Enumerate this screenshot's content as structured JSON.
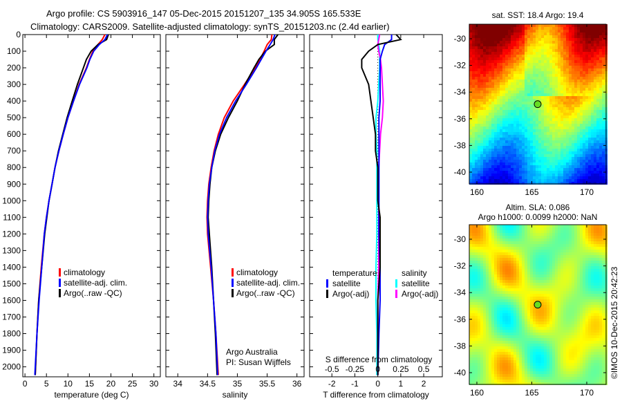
{
  "title": {
    "line1": "Argo profile: CS 5903916_147 05-Dec-2015 20151207_135 34.905S 165.533E",
    "line2": "Climatology: CARS2009. Satellite-adjusted climatology: synTS_20151203.nc (2.4d earlier)"
  },
  "colors": {
    "climatology": "#ff0000",
    "satellite": "#0000ff",
    "argo": "#000000",
    "sal_satellite": "#00ffff",
    "sal_argo": "#ff00ff"
  },
  "chart_data": [
    {
      "type": "line",
      "name": "temperature-profile",
      "xlabel": "temperature (deg C)",
      "xlim": [
        -0.5,
        31.5
      ],
      "xticks": [
        0,
        5,
        10,
        15,
        20,
        25,
        30
      ],
      "ylim": [
        2060,
        0
      ],
      "yticks": [
        0,
        100,
        200,
        300,
        400,
        500,
        600,
        700,
        800,
        900,
        1000,
        1100,
        1200,
        1300,
        1400,
        1500,
        1600,
        1700,
        1800,
        1900,
        2000
      ],
      "depth": [
        0,
        30,
        60,
        100,
        150,
        200,
        300,
        400,
        500,
        600,
        700,
        800,
        900,
        1000,
        1100,
        1200,
        1400,
        1600,
        1800,
        2050
      ],
      "series": [
        {
          "name": "climatology",
          "values": [
            18.6,
            18.0,
            17.0,
            15.8,
            15.0,
            14.3,
            12.6,
            11.3,
            10.0,
            8.9,
            7.9,
            7.0,
            6.3,
            5.6,
            5.0,
            4.5,
            3.8,
            3.2,
            2.8,
            2.4
          ]
        },
        {
          "name": "satellite-adj. clim.",
          "values": [
            19.2,
            18.6,
            17.3,
            16.0,
            15.1,
            14.4,
            12.7,
            11.3,
            10.0,
            8.9,
            7.9,
            7.0,
            6.3,
            5.6,
            5.0,
            4.5,
            3.9,
            3.3,
            2.8,
            2.3
          ]
        },
        {
          "name": "Argo(..raw -QC)",
          "values": [
            19.4,
            19.0,
            17.0,
            15.4,
            14.3,
            13.6,
            12.2,
            11.0,
            9.8,
            8.8,
            7.8,
            7.0,
            6.3,
            5.6,
            5.1,
            4.6,
            3.9,
            3.2,
            2.8,
            2.4
          ]
        }
      ],
      "legend": [
        "climatology",
        "satellite-adj. clim.",
        "Argo(..raw -QC)"
      ]
    },
    {
      "type": "line",
      "name": "salinity-profile",
      "xlabel": "salinity",
      "xlim": [
        33.8,
        36.12
      ],
      "xticks": [
        34,
        34.5,
        35,
        35.5,
        36
      ],
      "ylim": [
        2060,
        0
      ],
      "depth": [
        0,
        30,
        60,
        100,
        150,
        200,
        300,
        400,
        500,
        600,
        700,
        800,
        900,
        1000,
        1100,
        1200,
        1400,
        1600,
        1800,
        2050
      ],
      "series": [
        {
          "name": "climatology",
          "values": [
            35.58,
            35.57,
            35.5,
            35.45,
            35.38,
            35.3,
            35.12,
            34.93,
            34.78,
            34.68,
            34.61,
            34.56,
            34.52,
            34.5,
            34.49,
            34.5,
            34.55,
            34.6,
            34.64,
            34.68
          ]
        },
        {
          "name": "satellite-adj. clim.",
          "values": [
            35.63,
            35.6,
            35.55,
            35.48,
            35.4,
            35.32,
            35.15,
            34.97,
            34.82,
            34.7,
            34.62,
            34.57,
            34.53,
            34.51,
            34.5,
            34.51,
            34.56,
            34.6,
            34.64,
            34.67
          ]
        },
        {
          "name": "Argo(..raw -QC)",
          "values": [
            35.68,
            35.62,
            35.62,
            35.47,
            35.36,
            35.28,
            35.13,
            35.0,
            34.85,
            34.72,
            34.63,
            34.57,
            34.54,
            34.52,
            34.51,
            34.53,
            34.57,
            34.6,
            34.63,
            34.66
          ]
        }
      ],
      "legend": [
        "climatology",
        "satellite-adj. clim.",
        "Argo(..raw -QC)"
      ],
      "annotation": [
        "Argo Australia",
        "PI: Susan Wijffels"
      ]
    },
    {
      "type": "line",
      "name": "difference-profile",
      "xlabel": "T difference from climatology",
      "xlabel_top": "S difference from climatology",
      "xlim": [
        -2.97,
        2.81
      ],
      "xticks": [
        -2,
        -1,
        0,
        1,
        2
      ],
      "xticks_top": [
        -0.5,
        -0.25,
        0,
        0.25,
        0.5
      ],
      "depth": [
        0,
        30,
        60,
        100,
        150,
        200,
        300,
        400,
        500,
        600,
        700,
        800,
        900,
        1000,
        1100,
        1200,
        1400,
        1600,
        1800,
        2050
      ],
      "series": [
        {
          "name": "temperature satellite",
          "values": [
            0.6,
            0.6,
            0.3,
            0.2,
            0.1,
            0.1,
            0.1,
            0.1,
            0.05,
            0.05,
            0.05,
            0.05,
            0.05,
            0.05,
            0.05,
            0.05,
            0.1,
            0.1,
            0.05,
            0.0
          ]
        },
        {
          "name": "temperature Argo(-adj)",
          "values": [
            0.8,
            1.0,
            0.0,
            -0.4,
            -0.7,
            -0.7,
            -0.4,
            -0.3,
            -0.2,
            -0.1,
            -0.1,
            0.0,
            0.0,
            0.0,
            0.1,
            0.1,
            0.1,
            0.0,
            0.0,
            0.0
          ]
        },
        {
          "name": "salinity satellite",
          "values": [
            0.0,
            0.0,
            0.01,
            0.02,
            0.02,
            0.02,
            0.01,
            0.0,
            -0.02,
            -0.02,
            -0.01,
            -0.01,
            -0.01,
            -0.01,
            -0.01,
            -0.01,
            -0.02,
            -0.02,
            -0.01,
            -0.01
          ]
        },
        {
          "name": "salinity Argo(-adj)",
          "values": [
            0.02,
            0.01,
            0.0,
            0.01,
            0.03,
            0.04,
            0.05,
            0.06,
            0.05,
            0.03,
            0.02,
            0.01,
            0.01,
            0.01,
            0.01,
            0.01,
            0.01,
            0.0,
            0.0,
            0.0
          ]
        }
      ],
      "legend_temp_header": "temperature",
      "legend_sal_header": "salinity",
      "legend_items": [
        "satellite",
        "Argo(-adj)",
        "satellite",
        "Argo(-adj)"
      ]
    }
  ],
  "maps": {
    "sst": {
      "title": "sat. SST: 18.4  Argo: 19.4",
      "lon_ticks": [
        "160",
        "165",
        "170"
      ],
      "lat_ticks": [
        "-30",
        "-32",
        "-34",
        "-36",
        "-38",
        "-40"
      ],
      "argo_position": {
        "lon": 165.533,
        "lat": -34.905
      }
    },
    "sla": {
      "title1": "Altim. SLA: 0.086",
      "title2": "Argo h1000: 0.0099 h2000: NaN",
      "lon_ticks": [
        "160",
        "165",
        "170"
      ],
      "lat_ticks": [
        "-30",
        "-32",
        "-34",
        "-36",
        "-38",
        "-40"
      ],
      "argo_position": {
        "lon": 165.533,
        "lat": -34.905
      }
    }
  },
  "credit": "©IMOS 10-Dec-2015 20:42:23"
}
